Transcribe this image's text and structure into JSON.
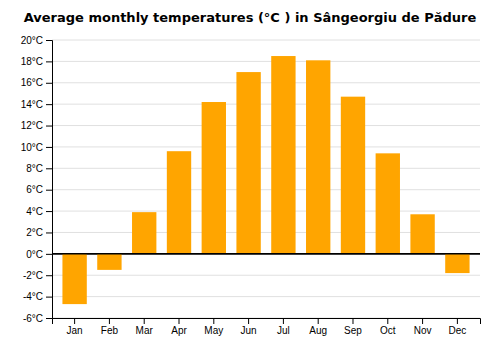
{
  "chart_data": {
    "type": "bar",
    "title": "Average monthly temperatures (°C ) in Sângeorgiu de Pădure",
    "categories": [
      "Jan",
      "Feb",
      "Mar",
      "Apr",
      "May",
      "Jun",
      "Jul",
      "Aug",
      "Sep",
      "Oct",
      "Nov",
      "Dec"
    ],
    "values": [
      -4.7,
      -1.5,
      3.9,
      9.6,
      14.2,
      17.0,
      18.5,
      18.1,
      14.7,
      9.4,
      3.7,
      -1.8
    ],
    "color": "#FFA500",
    "ylim": [
      -6,
      20
    ],
    "yticks": [
      {
        "value": -6,
        "label": "-6°C"
      },
      {
        "value": -4,
        "label": "-4°C"
      },
      {
        "value": -2,
        "label": "-2°C"
      },
      {
        "value": 0,
        "label": "0°C"
      },
      {
        "value": 2,
        "label": "2°C"
      },
      {
        "value": 4,
        "label": "4°C"
      },
      {
        "value": 6,
        "label": "6°C"
      },
      {
        "value": 8,
        "label": "8°C"
      },
      {
        "value": 10,
        "label": "10°C"
      },
      {
        "value": 12,
        "label": "12°C"
      },
      {
        "value": 14,
        "label": "14°C"
      },
      {
        "value": 16,
        "label": "16°C"
      },
      {
        "value": 18,
        "label": "18°C"
      },
      {
        "value": 20,
        "label": "20°C"
      }
    ],
    "grid": true
  }
}
